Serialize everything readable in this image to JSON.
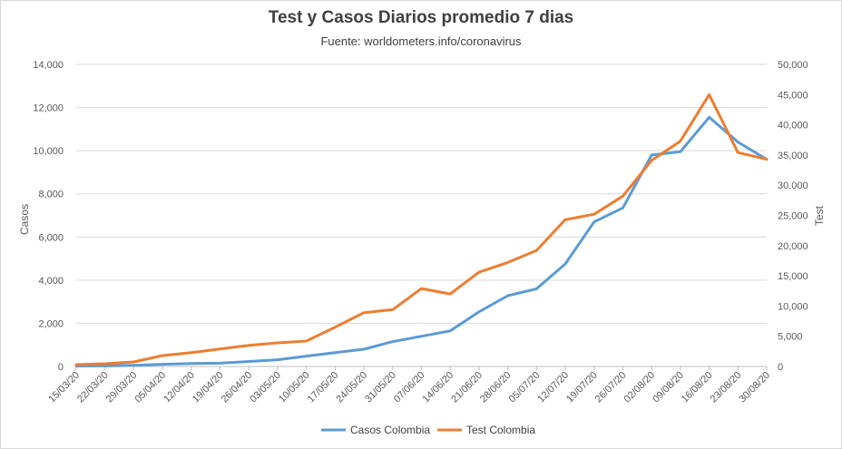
{
  "chart_data": {
    "type": "line",
    "title": "Test y Casos  Diarios  promedio  7 dias",
    "subtitle": "Fuente: worldometers.info/coronavirus",
    "ylabel_left": "Casos",
    "ylabel_right": "Test",
    "ylim_left": [
      0,
      14000
    ],
    "ylim_right": [
      0,
      50000
    ],
    "yticks_left": [
      "0",
      "2,000",
      "4,000",
      "6,000",
      "8,000",
      "10,000",
      "12,000",
      "14,000"
    ],
    "yticks_right": [
      "0",
      "5,000",
      "10,000",
      "15,000",
      "20,000",
      "25,000",
      "30,000",
      "35,000",
      "40,000",
      "45,000",
      "50,000"
    ],
    "grid": true,
    "legend_position": "bottom",
    "categories": [
      "15/03/20",
      "22/03/20",
      "29/03/20",
      "05/04/20",
      "12/04/20",
      "19/04/20",
      "26/04/20",
      "03/05/20",
      "10/05/20",
      "17/05/20",
      "24/05/20",
      "31/05/20",
      "07/06/20",
      "14/06/20",
      "21/06/20",
      "28/06/20",
      "05/07/20",
      "12/07/20",
      "19/07/20",
      "26/07/20",
      "02/08/20",
      "09/08/20",
      "16/08/20",
      "23/08/20",
      "30/08/20"
    ],
    "series": [
      {
        "name": "Casos  Colombia",
        "axis": "left",
        "color": "#5b9bd5",
        "values": [
          20,
          25,
          50,
          100,
          140,
          150,
          230,
          310,
          480,
          640,
          800,
          1150,
          1400,
          1650,
          2530,
          3280,
          3600,
          4750,
          6700,
          7350,
          9800,
          9950,
          11550,
          10400,
          9600
        ]
      },
      {
        "name": "Test Colombia",
        "axis": "right",
        "color": "#ed7d31",
        "values": [
          300,
          450,
          750,
          1800,
          2300,
          2900,
          3500,
          3900,
          4200,
          6500,
          8900,
          9400,
          12900,
          12000,
          15600,
          17200,
          19200,
          24300,
          25200,
          28200,
          34100,
          37300,
          45000,
          35400,
          34300
        ]
      }
    ]
  }
}
